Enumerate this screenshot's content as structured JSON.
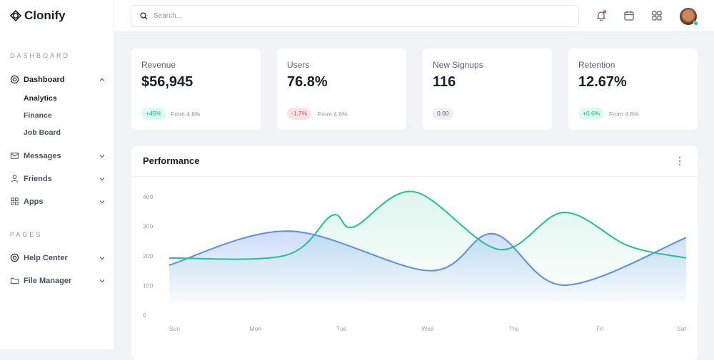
{
  "brand": "Clonify",
  "sidebar": {
    "section1": "DASHBOARD",
    "dashboard": "Dashboard",
    "subitems": [
      "Analytics",
      "Finance",
      "Job Board"
    ],
    "messages": "Messages",
    "friends": "Friends",
    "apps": "Apps",
    "section2": "PAGES",
    "help": "Help Center",
    "files": "File Manager"
  },
  "header": {
    "search_placeholder": "Search..."
  },
  "stats": [
    {
      "label": "Revenue",
      "value": "$56,945",
      "badge": "+45%",
      "trend": "up",
      "from": "From 4.6%"
    },
    {
      "label": "Users",
      "value": "76.8%",
      "badge": "-1.7%",
      "trend": "down",
      "from": "From 4.6%"
    },
    {
      "label": "New Signups",
      "value": "116",
      "badge": "0.00",
      "trend": "flat",
      "from": ""
    },
    {
      "label": "Retention",
      "value": "12.67%",
      "badge": "+0.6%",
      "trend": "up",
      "from": "From 4.6%"
    }
  ],
  "performance": {
    "title": "Performance"
  },
  "colors": {
    "blue": "#5b8def",
    "green": "#1fc28f",
    "notify": "#e5484d",
    "online": "#1fc28f"
  },
  "chart_data": {
    "type": "area",
    "categories": [
      "Sun",
      "Mon",
      "Tue",
      "Wed",
      "Thu",
      "Fri",
      "Sat"
    ],
    "yticks": [
      0,
      100,
      200,
      300,
      400
    ],
    "ylim": [
      0,
      400
    ],
    "grid": false,
    "series": [
      {
        "color": "#5b8def",
        "x": [
          0,
          1.39,
          3.03,
          3.76,
          4.58,
          6
        ],
        "y": [
          169,
          284,
          150,
          275,
          101,
          262
        ]
      },
      {
        "color": "#1fc28f",
        "x": [
          0,
          1.35,
          1.89,
          2.14,
          2.84,
          3.83,
          4.58,
          5.33,
          6
        ],
        "y": [
          193,
          202,
          337,
          298,
          417,
          222,
          347,
          234,
          193
        ]
      }
    ]
  }
}
